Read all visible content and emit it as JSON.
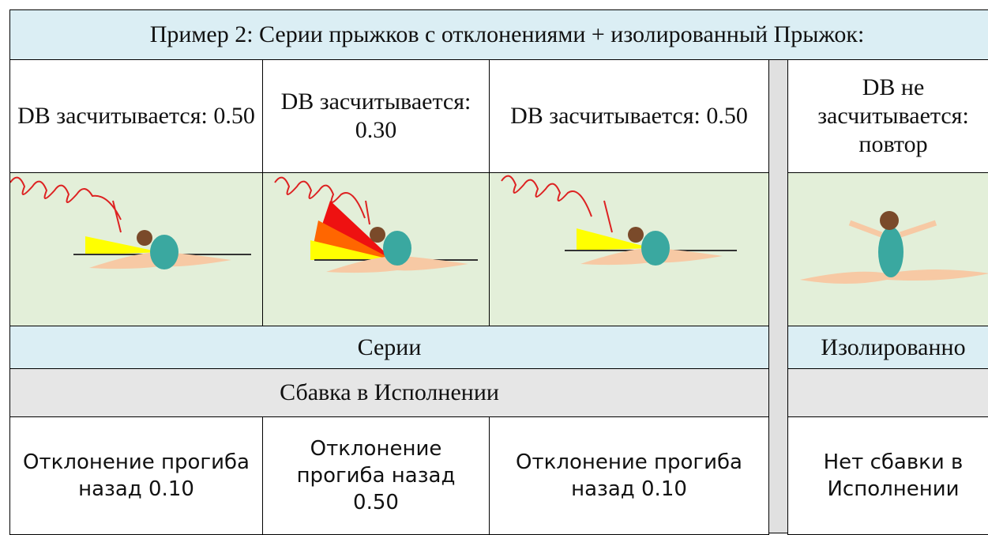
{
  "title": "Пример 2: Серии прыжков с отклонениями + изолированный Прыжок:",
  "columns": [
    {
      "db": "DB засчитывается: 0.50",
      "deduction": "Отклонение прогиба назад 0.10"
    },
    {
      "db": "DB засчитывается: 0.30",
      "deduction": "Отклонение прогиба назад 0.50"
    },
    {
      "db": "DB засчитывается: 0.50",
      "deduction": "Отклонение прогиба назад 0.10"
    },
    {
      "db": "DB не засчитывается: повтор",
      "deduction": "Нет сбавки в Исполнении"
    }
  ],
  "groups": {
    "series": "Серии",
    "isolated": "Изолированно"
  },
  "execution": "Сбавка в Исполнении"
}
